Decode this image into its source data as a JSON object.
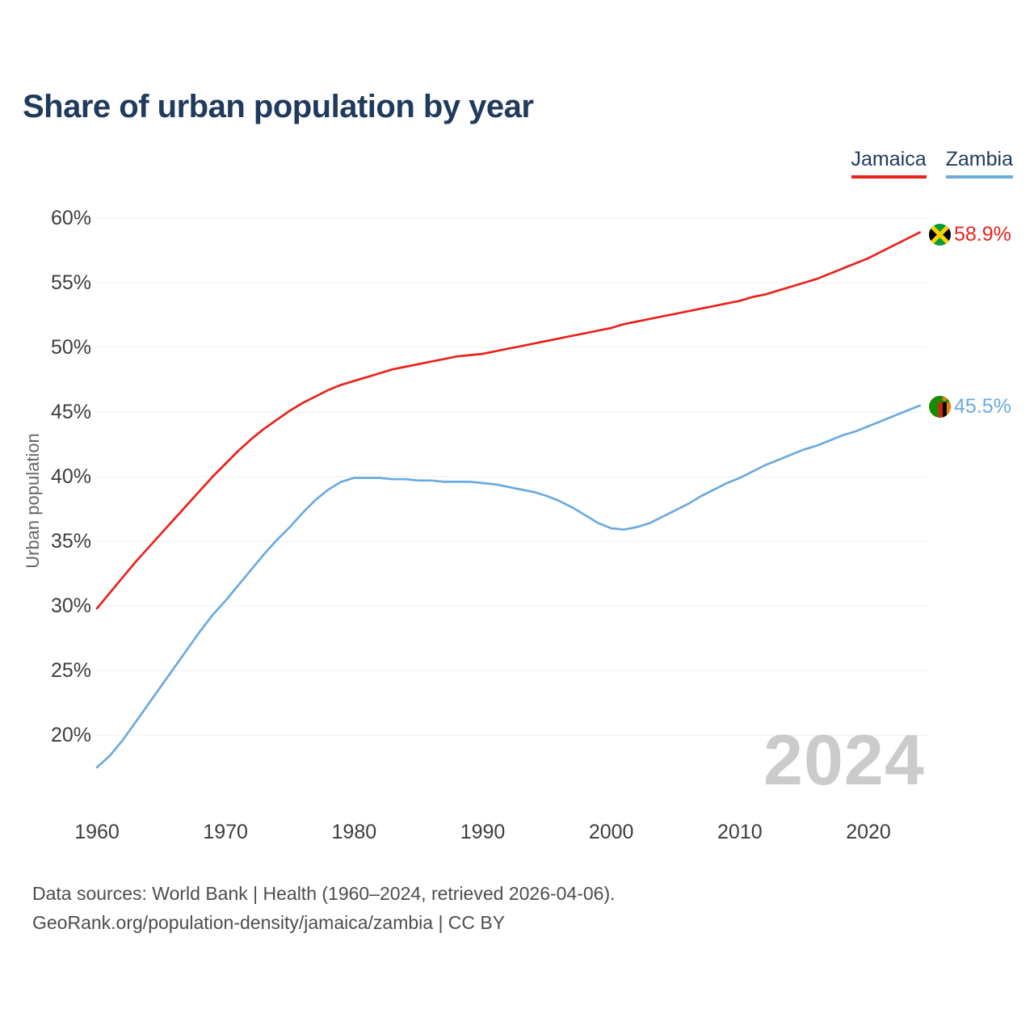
{
  "title": "Share of urban population by year",
  "legend": {
    "items": [
      {
        "label": "Jamaica",
        "color": "#e8231c"
      },
      {
        "label": "Zambia",
        "color": "#6aabdf"
      }
    ]
  },
  "watermark": "2024",
  "footer": {
    "line1": "Data sources: World Bank | Health (1960–2024, retrieved 2026-04-06).",
    "line2": "GeoRank.org/population-density/jamaica/zambia | CC BY"
  },
  "chart_data": {
    "type": "line",
    "title": "Share of urban population by year",
    "xlabel": "",
    "ylabel": "Urban population",
    "xlim": [
      1960,
      2024
    ],
    "ylim": [
      15.5,
      62
    ],
    "grid": true,
    "legend_position": "top-right",
    "x_ticks": [
      1960,
      1970,
      1980,
      1990,
      2000,
      2010,
      2020
    ],
    "y_ticks": [
      20,
      25,
      30,
      35,
      40,
      45,
      50,
      55,
      60
    ],
    "y_tick_suffix": "%",
    "x": [
      1960,
      1961,
      1962,
      1963,
      1964,
      1965,
      1966,
      1967,
      1968,
      1969,
      1970,
      1971,
      1972,
      1973,
      1974,
      1975,
      1976,
      1977,
      1978,
      1979,
      1980,
      1981,
      1982,
      1983,
      1984,
      1985,
      1986,
      1987,
      1988,
      1989,
      1990,
      1991,
      1992,
      1993,
      1994,
      1995,
      1996,
      1997,
      1998,
      1999,
      2000,
      2001,
      2002,
      2003,
      2004,
      2005,
      2006,
      2007,
      2008,
      2009,
      2010,
      2011,
      2012,
      2013,
      2014,
      2015,
      2016,
      2017,
      2018,
      2019,
      2020,
      2021,
      2022,
      2023,
      2024
    ],
    "series": [
      {
        "name": "Jamaica",
        "color": "#e8231c",
        "end_label": "58.9%",
        "values": [
          29.8,
          31.0,
          32.2,
          33.4,
          34.5,
          35.6,
          36.7,
          37.8,
          38.9,
          40.0,
          41.0,
          42.0,
          42.9,
          43.7,
          44.4,
          45.1,
          45.7,
          46.2,
          46.7,
          47.1,
          47.4,
          47.7,
          48.0,
          48.3,
          48.5,
          48.7,
          48.9,
          49.1,
          49.3,
          49.4,
          49.5,
          49.7,
          49.9,
          50.1,
          50.3,
          50.5,
          50.7,
          50.9,
          51.1,
          51.3,
          51.5,
          51.8,
          52.0,
          52.2,
          52.4,
          52.6,
          52.8,
          53.0,
          53.2,
          53.4,
          53.6,
          53.9,
          54.1,
          54.4,
          54.7,
          55.0,
          55.3,
          55.7,
          56.1,
          56.5,
          56.9,
          57.4,
          57.9,
          58.4,
          58.9
        ]
      },
      {
        "name": "Zambia",
        "color": "#6aabdf",
        "end_label": "45.5%",
        "values": [
          17.5,
          18.4,
          19.6,
          21.0,
          22.4,
          23.8,
          25.2,
          26.6,
          28.0,
          29.3,
          30.4,
          31.6,
          32.8,
          34.0,
          35.1,
          36.1,
          37.2,
          38.2,
          39.0,
          39.6,
          39.9,
          39.9,
          39.9,
          39.8,
          39.8,
          39.7,
          39.7,
          39.6,
          39.6,
          39.6,
          39.5,
          39.4,
          39.2,
          39.0,
          38.8,
          38.5,
          38.1,
          37.6,
          37.0,
          36.4,
          36.0,
          35.9,
          36.1,
          36.4,
          36.9,
          37.4,
          37.9,
          38.5,
          39.0,
          39.5,
          39.9,
          40.4,
          40.9,
          41.3,
          41.7,
          42.1,
          42.4,
          42.8,
          43.2,
          43.5,
          43.9,
          44.3,
          44.7,
          45.1,
          45.5
        ]
      }
    ]
  }
}
